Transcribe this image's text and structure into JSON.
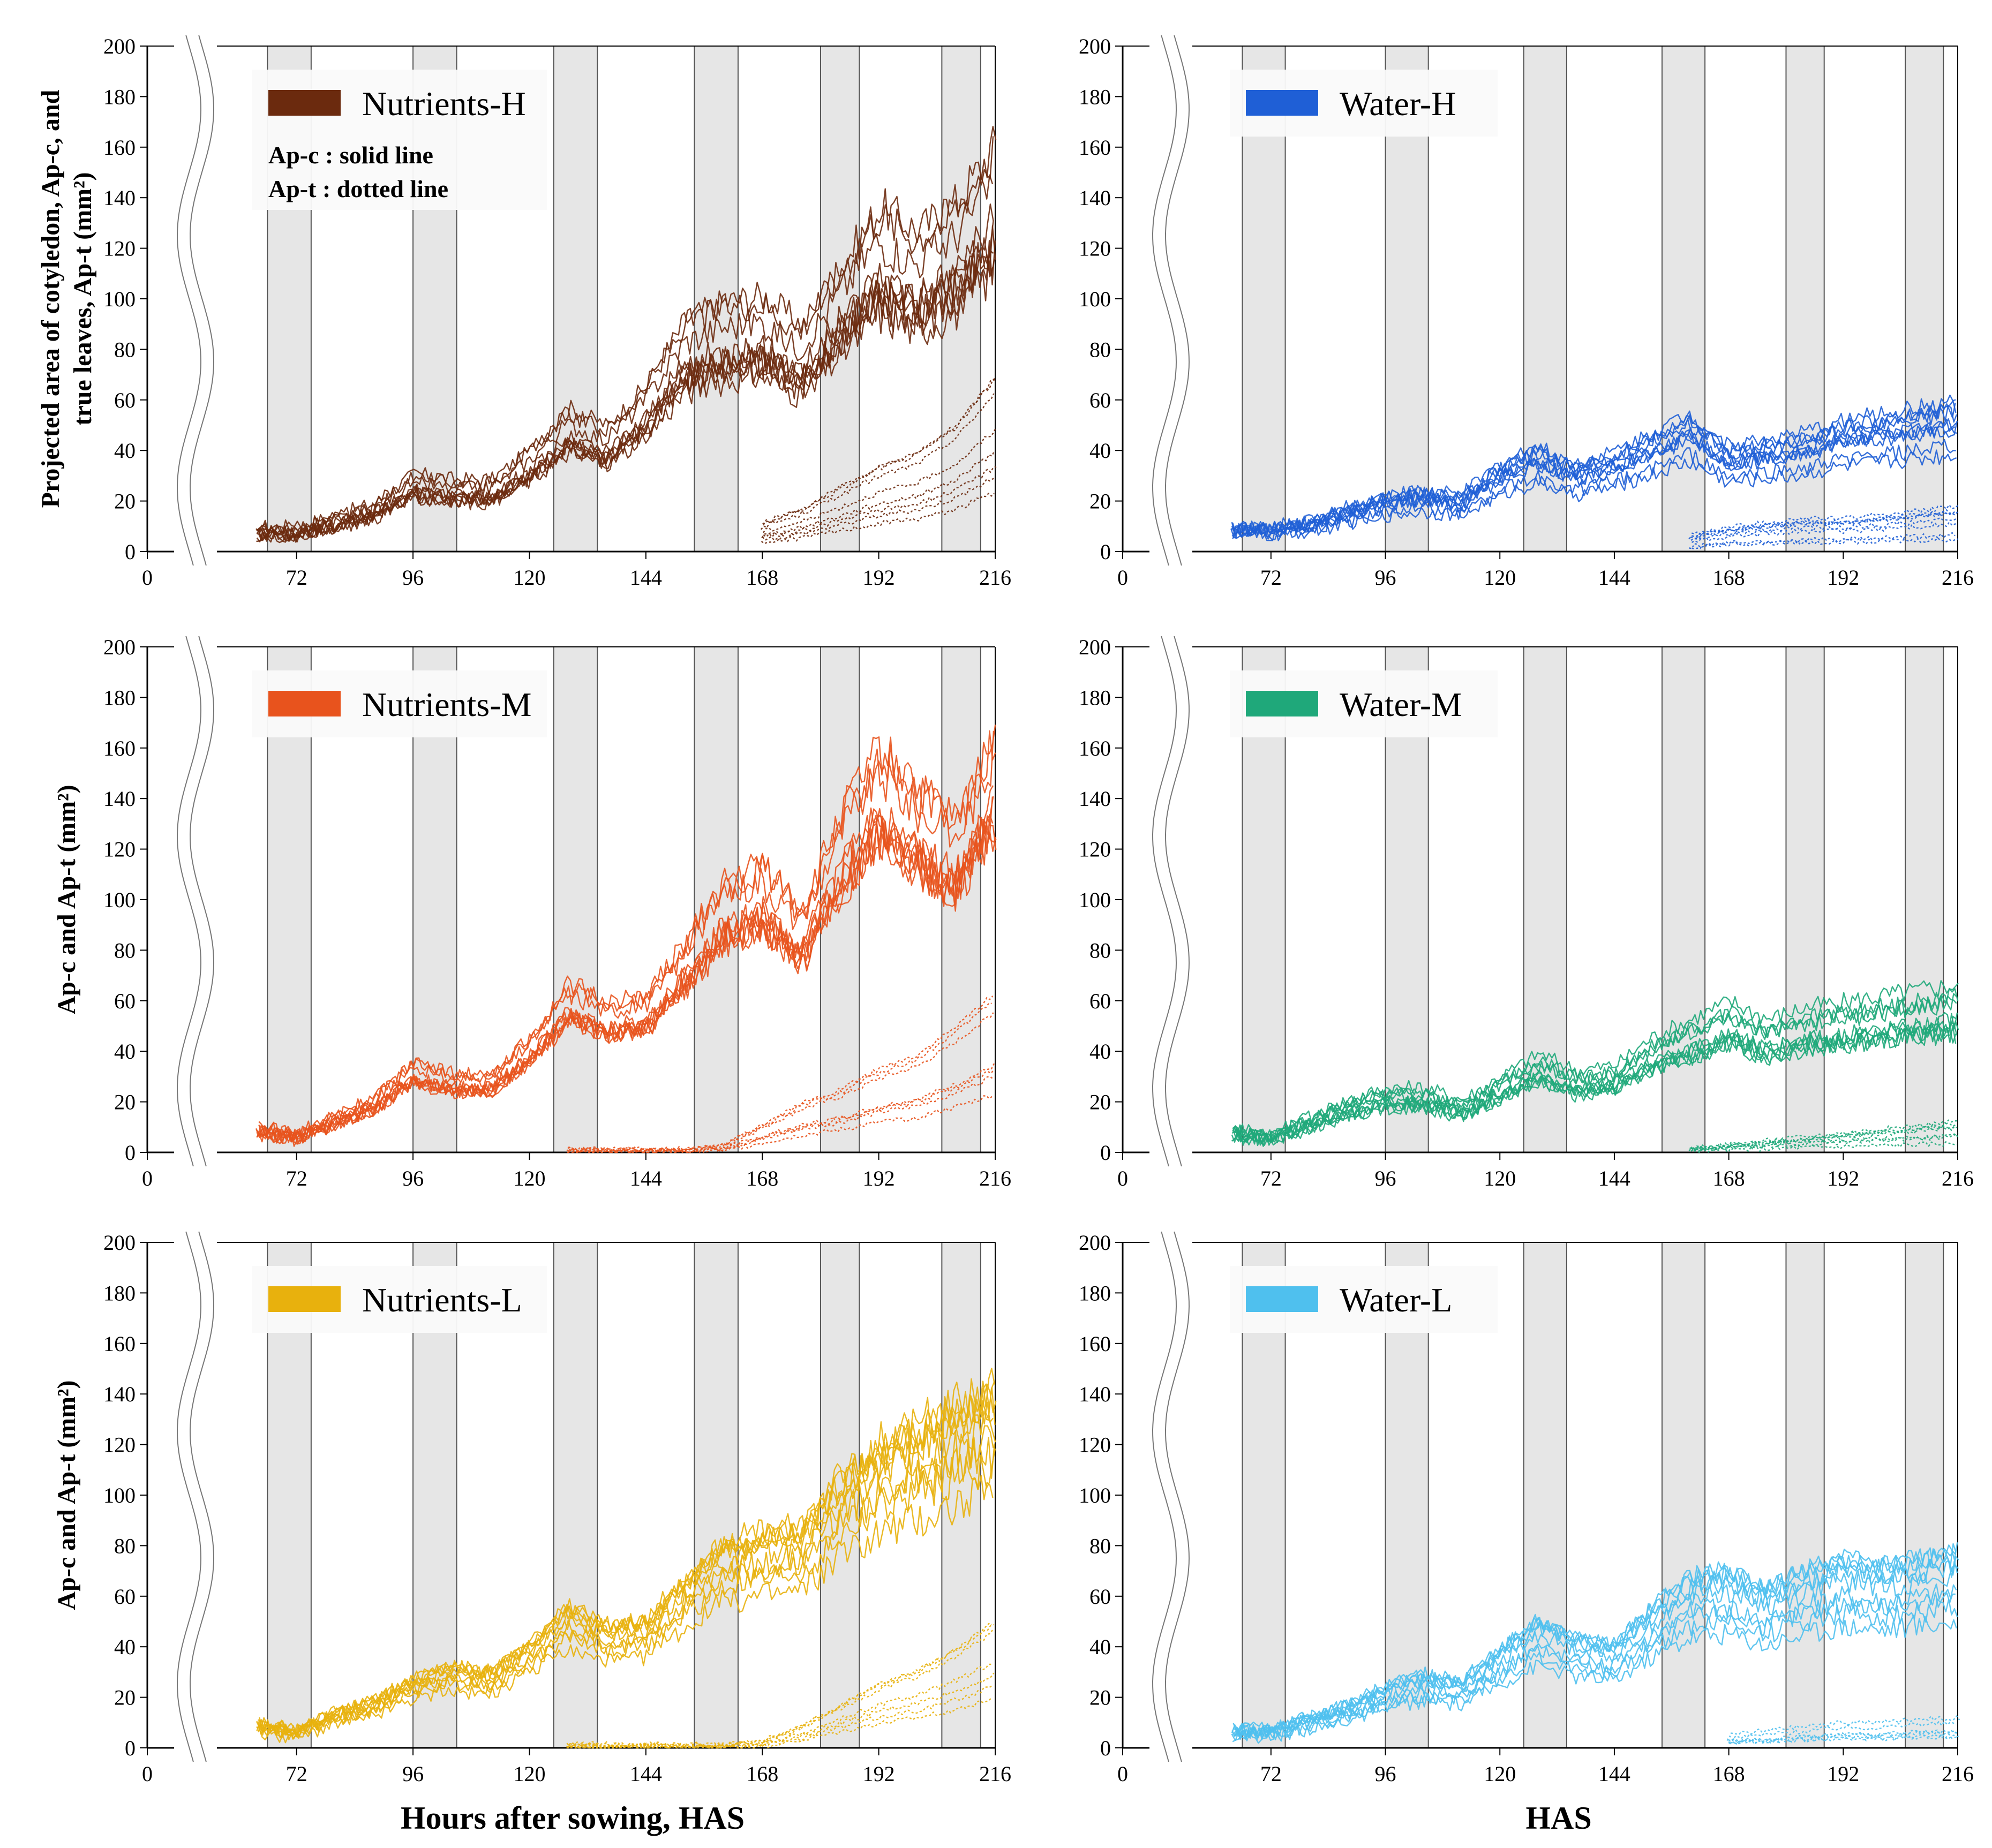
{
  "figure": {
    "xlabel_left": "Hours after sowing, HAS",
    "xlabel_right": "HAS",
    "ylabel_top": "Projected area of cotyledon, Ap-c, and true leaves, Ap-t (mm²)",
    "ylabel_rest": "Ap-c and Ap-t (mm²)",
    "note_solid": "Ap-c : solid line",
    "note_dotted": "Ap-t : dotted line"
  },
  "chart_data": [
    {
      "id": "nutrients-h",
      "type": "line",
      "legend": "Nutrients-H",
      "color": "#6b2a0e",
      "x_ticks": [
        "0",
        "72",
        "96",
        "120",
        "144",
        "168",
        "192",
        "216"
      ],
      "y_ticks": [
        "0",
        "20",
        "40",
        "60",
        "80",
        "100",
        "120",
        "140",
        "160",
        "180",
        "200"
      ],
      "xlim": [
        60,
        216
      ],
      "ylim": [
        0,
        200
      ],
      "dark_periods": [
        [
          66,
          75
        ],
        [
          96,
          105
        ],
        [
          125,
          134
        ],
        [
          154,
          163
        ],
        [
          180,
          188
        ],
        [
          205,
          213
        ]
      ],
      "solid": {
        "x": [
          64,
          72,
          80,
          88,
          96,
          104,
          112,
          120,
          128,
          136,
          144,
          152,
          160,
          168,
          176,
          184,
          192,
          200,
          208,
          216
        ],
        "y": [
          8,
          8,
          12,
          16,
          26,
          24,
          24,
          34,
          48,
          42,
          56,
          78,
          84,
          86,
          76,
          96,
          116,
          108,
          118,
          138
        ],
        "spread": 0.22,
        "count": 10
      },
      "dotted": {
        "x": [
          168,
          176,
          184,
          192,
          200,
          208,
          216
        ],
        "y": [
          8,
          12,
          18,
          24,
          28,
          36,
          50
        ],
        "spread": 0.55,
        "count": 8
      }
    },
    {
      "id": "water-h",
      "type": "line",
      "legend": "Water-H",
      "color": "#1f5fd6",
      "x_ticks": [
        "0",
        "72",
        "96",
        "120",
        "144",
        "168",
        "192",
        "216"
      ],
      "y_ticks": [
        "0",
        "20",
        "40",
        "60",
        "80",
        "100",
        "120",
        "140",
        "160",
        "180",
        "200"
      ],
      "xlim": [
        60,
        216
      ],
      "ylim": [
        0,
        200
      ],
      "dark_periods": [
        [
          66,
          75
        ],
        [
          96,
          105
        ],
        [
          125,
          134
        ],
        [
          154,
          163
        ],
        [
          180,
          188
        ],
        [
          205,
          213
        ]
      ],
      "solid": {
        "x": [
          64,
          72,
          80,
          88,
          96,
          104,
          112,
          120,
          128,
          136,
          144,
          152,
          160,
          168,
          176,
          184,
          192,
          200,
          208,
          216
        ],
        "y": [
          8,
          8,
          10,
          14,
          18,
          20,
          18,
          28,
          34,
          28,
          32,
          38,
          44,
          34,
          36,
          38,
          42,
          44,
          46,
          48
        ],
        "spread": 0.25,
        "count": 10
      },
      "dotted": {
        "x": [
          160,
          168,
          176,
          184,
          192,
          200,
          208,
          216
        ],
        "y": [
          4,
          6,
          7,
          8,
          8,
          9,
          10,
          11
        ],
        "spread": 0.6,
        "count": 8
      }
    },
    {
      "id": "nutrients-m",
      "type": "line",
      "legend": "Nutrients-M",
      "color": "#e8531d",
      "x_ticks": [
        "0",
        "72",
        "96",
        "120",
        "144",
        "168",
        "192",
        "216"
      ],
      "y_ticks": [
        "0",
        "20",
        "40",
        "60",
        "80",
        "100",
        "120",
        "140",
        "160",
        "180",
        "200"
      ],
      "xlim": [
        60,
        216
      ],
      "ylim": [
        0,
        200
      ],
      "dark_periods": [
        [
          66,
          75
        ],
        [
          96,
          105
        ],
        [
          125,
          134
        ],
        [
          154,
          163
        ],
        [
          180,
          188
        ],
        [
          205,
          213
        ]
      ],
      "solid": {
        "x": [
          64,
          72,
          80,
          88,
          96,
          104,
          112,
          120,
          128,
          136,
          144,
          152,
          160,
          168,
          176,
          184,
          192,
          200,
          208,
          216
        ],
        "y": [
          8,
          6,
          12,
          18,
          30,
          26,
          26,
          38,
          56,
          50,
          52,
          70,
          90,
          96,
          80,
          112,
          134,
          120,
          110,
          140
        ],
        "spread": 0.22,
        "count": 10
      },
      "dotted": {
        "x": [
          128,
          136,
          144,
          152,
          160,
          168,
          176,
          184,
          192,
          200,
          208,
          216
        ],
        "y": [
          1,
          1,
          1,
          1,
          2,
          8,
          14,
          18,
          24,
          28,
          36,
          46
        ],
        "spread": 0.55,
        "count": 7
      }
    },
    {
      "id": "water-m",
      "type": "line",
      "legend": "Water-M",
      "color": "#1fa87a",
      "x_ticks": [
        "0",
        "72",
        "96",
        "120",
        "144",
        "168",
        "192",
        "216"
      ],
      "y_ticks": [
        "0",
        "20",
        "40",
        "60",
        "80",
        "100",
        "120",
        "140",
        "160",
        "180",
        "200"
      ],
      "xlim": [
        60,
        216
      ],
      "ylim": [
        0,
        200
      ],
      "dark_periods": [
        [
          66,
          75
        ],
        [
          96,
          105
        ],
        [
          125,
          134
        ],
        [
          154,
          163
        ],
        [
          180,
          188
        ],
        [
          205,
          213
        ]
      ],
      "solid": {
        "x": [
          64,
          72,
          80,
          88,
          96,
          104,
          112,
          120,
          128,
          136,
          144,
          152,
          160,
          168,
          176,
          184,
          192,
          200,
          208,
          216
        ],
        "y": [
          8,
          6,
          12,
          18,
          22,
          22,
          18,
          26,
          34,
          28,
          30,
          40,
          46,
          52,
          46,
          50,
          52,
          54,
          56,
          58
        ],
        "spread": 0.22,
        "count": 10
      },
      "dotted": {
        "x": [
          160,
          168,
          176,
          184,
          192,
          200,
          208,
          216
        ],
        "y": [
          1,
          2,
          3,
          4,
          5,
          6,
          7,
          8
        ],
        "spread": 0.6,
        "count": 7
      }
    },
    {
      "id": "nutrients-l",
      "type": "line",
      "legend": "Nutrients-L",
      "color": "#e8b10d",
      "x_ticks": [
        "0",
        "72",
        "96",
        "120",
        "144",
        "168",
        "192",
        "216"
      ],
      "y_ticks": [
        "0",
        "20",
        "40",
        "60",
        "80",
        "100",
        "120",
        "140",
        "160",
        "180",
        "200"
      ],
      "xlim": [
        60,
        216
      ],
      "ylim": [
        0,
        200
      ],
      "dark_periods": [
        [
          66,
          75
        ],
        [
          96,
          105
        ],
        [
          125,
          134
        ],
        [
          154,
          163
        ],
        [
          180,
          188
        ],
        [
          205,
          213
        ]
      ],
      "solid": {
        "x": [
          64,
          72,
          80,
          88,
          96,
          104,
          112,
          120,
          128,
          136,
          144,
          152,
          160,
          168,
          176,
          184,
          192,
          200,
          208,
          216
        ],
        "y": [
          8,
          6,
          12,
          16,
          24,
          28,
          26,
          36,
          48,
          42,
          44,
          58,
          70,
          74,
          76,
          92,
          104,
          110,
          118,
          122
        ],
        "spread": 0.22,
        "count": 10
      },
      "dotted": {
        "x": [
          128,
          136,
          144,
          152,
          160,
          168,
          176,
          184,
          192,
          200,
          208,
          216
        ],
        "y": [
          1,
          1,
          1,
          1,
          1,
          2,
          6,
          12,
          18,
          22,
          28,
          36
        ],
        "spread": 0.55,
        "count": 7
      }
    },
    {
      "id": "water-l",
      "type": "line",
      "legend": "Water-L",
      "color": "#4fc0ee",
      "x_ticks": [
        "0",
        "72",
        "96",
        "120",
        "144",
        "168",
        "192",
        "216"
      ],
      "y_ticks": [
        "0",
        "20",
        "40",
        "60",
        "80",
        "100",
        "120",
        "140",
        "160",
        "180",
        "200"
      ],
      "xlim": [
        60,
        216
      ],
      "ylim": [
        0,
        200
      ],
      "dark_periods": [
        [
          66,
          75
        ],
        [
          96,
          105
        ],
        [
          125,
          134
        ],
        [
          154,
          163
        ],
        [
          180,
          188
        ],
        [
          205,
          213
        ]
      ],
      "solid": {
        "x": [
          64,
          72,
          80,
          88,
          96,
          104,
          112,
          120,
          128,
          136,
          144,
          152,
          160,
          168,
          176,
          184,
          192,
          200,
          208,
          216
        ],
        "y": [
          6,
          6,
          10,
          14,
          20,
          24,
          22,
          32,
          42,
          36,
          34,
          46,
          56,
          58,
          52,
          58,
          62,
          60,
          62,
          64
        ],
        "spread": 0.22,
        "count": 10
      },
      "dotted": {
        "x": [
          168,
          176,
          184,
          192,
          200,
          208,
          216
        ],
        "y": [
          3,
          4,
          5,
          6,
          6,
          7,
          7
        ],
        "spread": 0.6,
        "count": 6
      }
    }
  ]
}
